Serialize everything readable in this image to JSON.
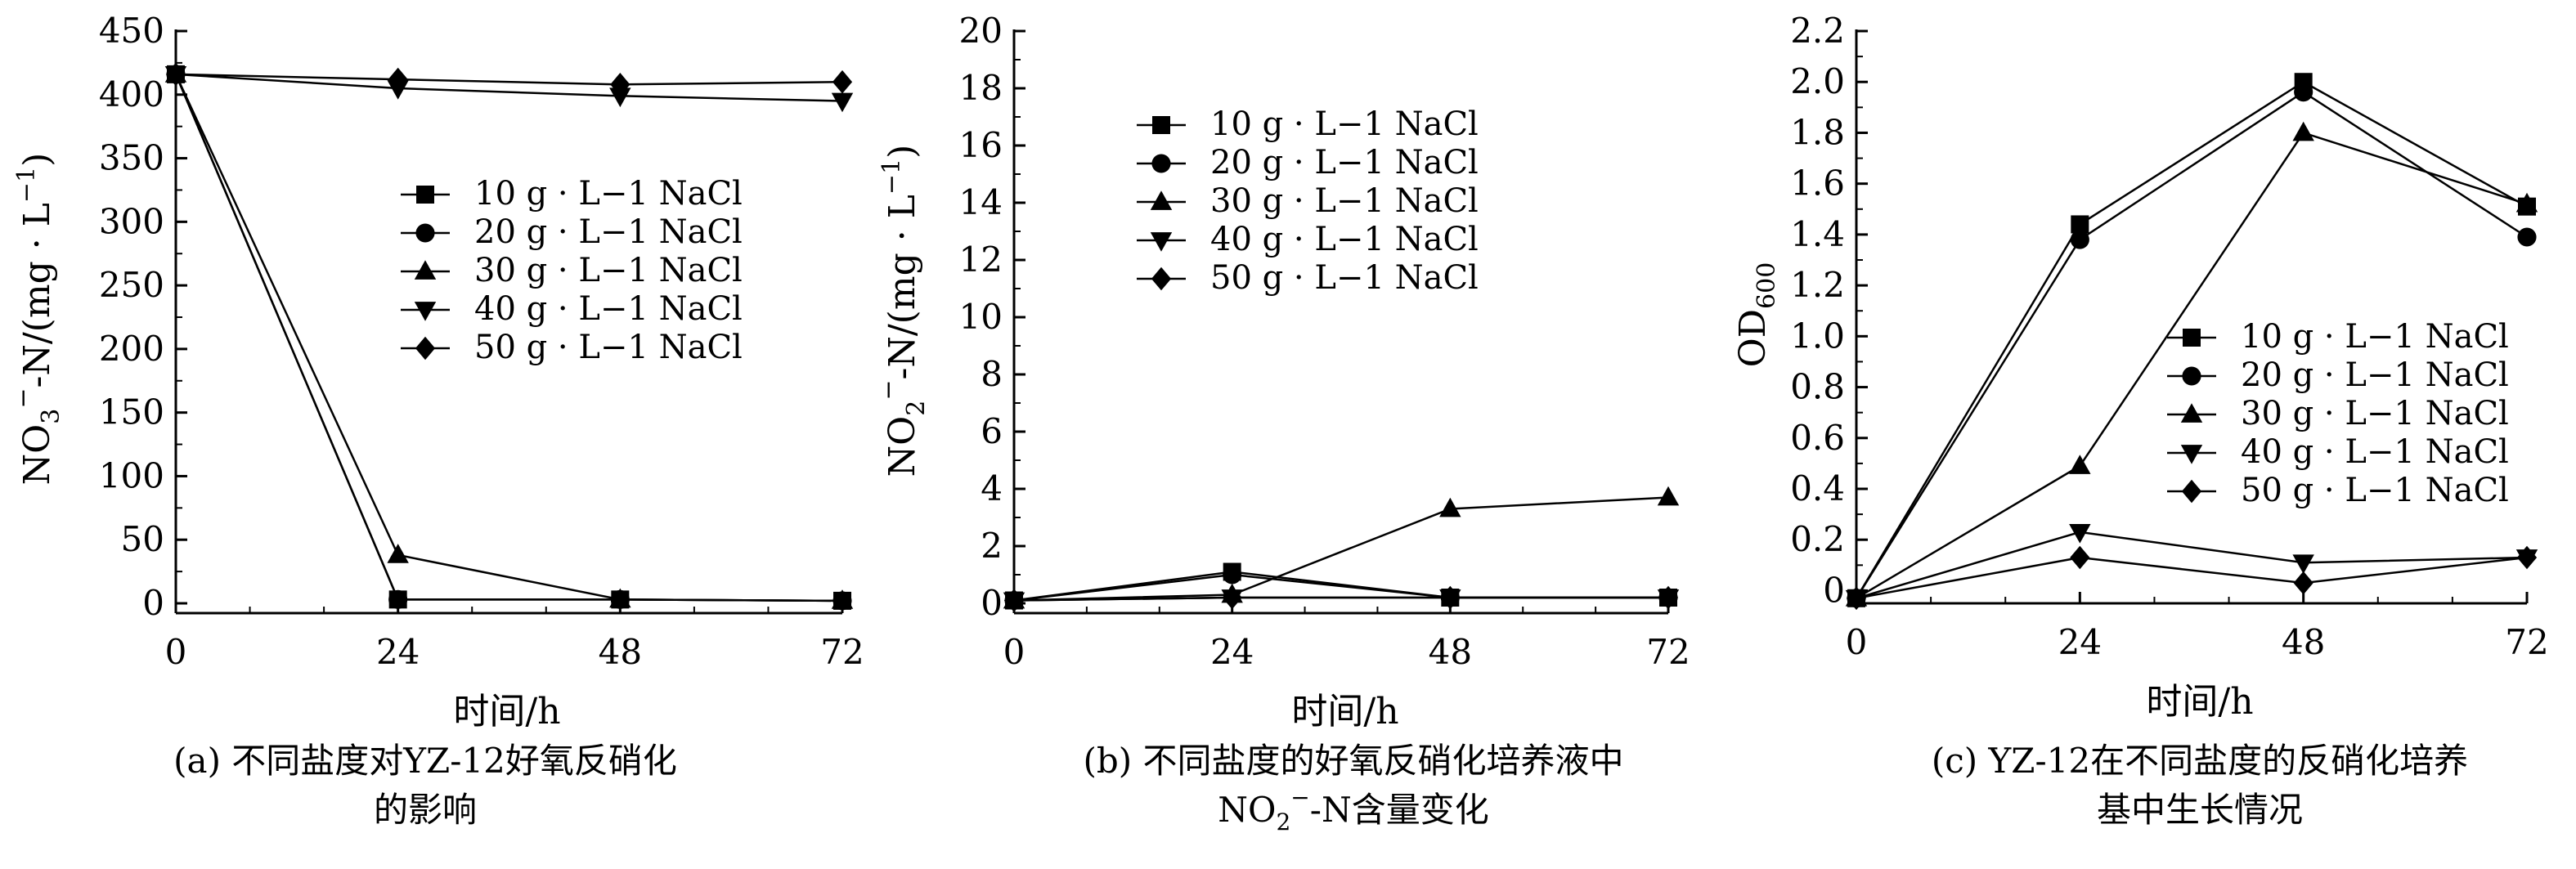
{
  "chart_data": [
    {
      "type": "line",
      "panel": "a",
      "ylabel": "NO3−-N/(mg · L−1)",
      "ylabel_parts": {
        "a": "NO",
        "b": "3",
        "c": "−",
        "d": "-N/(mg · L",
        "e": "−1",
        "f": ")"
      },
      "xlabel": "时间/h",
      "caption_lines": [
        "(a) 不同盐度对YZ-12好氧反硝化",
        "的影响"
      ],
      "x": [
        0,
        24,
        48,
        72
      ],
      "x_ticks": [
        "0",
        "24",
        "48",
        "72"
      ],
      "ylim": [
        0,
        450
      ],
      "y_ticks": [
        "0",
        "50",
        "100",
        "150",
        "200",
        "250",
        "300",
        "350",
        "400",
        "450"
      ],
      "legend_position": "center",
      "series": [
        {
          "name": "10 g · L−1 NaCl",
          "marker": "square",
          "values": [
            416,
            3,
            3,
            2
          ]
        },
        {
          "name": "20 g · L−1 NaCl",
          "marker": "circle",
          "values": [
            416,
            3,
            3,
            2
          ]
        },
        {
          "name": "30 g · L−1 NaCl",
          "marker": "triangle",
          "values": [
            416,
            38,
            3,
            2
          ]
        },
        {
          "name": "40 g · L−1 NaCl",
          "marker": "triangle-down",
          "values": [
            416,
            405,
            399,
            395
          ]
        },
        {
          "name": "50 g · L−1 NaCl",
          "marker": "diamond",
          "values": [
            416,
            412,
            408,
            410
          ]
        }
      ]
    },
    {
      "type": "line",
      "panel": "b",
      "ylabel": "NO2−-N/(mg · L−1)",
      "ylabel_parts": {
        "a": "NO",
        "b": "2",
        "c": "−",
        "d": "-N/(mg · L",
        "e": "−1",
        "f": ")"
      },
      "xlabel": "时间/h",
      "caption_lines": [
        "(b) 不同盐度的好氧反硝化培养液中",
        "NO2−-N含量变化"
      ],
      "caption_line2_parts": {
        "a": "NO",
        "b": "2",
        "c": "−",
        "d": "-N含量变化"
      },
      "x": [
        0,
        24,
        48,
        72
      ],
      "x_ticks": [
        "0",
        "24",
        "48",
        "72"
      ],
      "ylim": [
        0,
        20
      ],
      "y_ticks": [
        "0",
        "2",
        "4",
        "6",
        "8",
        "10",
        "12",
        "14",
        "16",
        "18",
        "20"
      ],
      "legend_position": "top-center",
      "series": [
        {
          "name": "10 g · L−1 NaCl",
          "marker": "square",
          "values": [
            0.1,
            1.1,
            0.2,
            0.2
          ]
        },
        {
          "name": "20 g · L−1 NaCl",
          "marker": "circle",
          "values": [
            0.1,
            1.0,
            0.2,
            0.2
          ]
        },
        {
          "name": "30 g · L−1 NaCl",
          "marker": "triangle",
          "values": [
            0.1,
            0.3,
            3.3,
            3.7
          ]
        },
        {
          "name": "40 g · L−1 NaCl",
          "marker": "triangle-down",
          "values": [
            0.1,
            0.2,
            0.2,
            0.2
          ]
        },
        {
          "name": "50 g · L−1 NaCl",
          "marker": "diamond",
          "values": [
            0.1,
            0.2,
            0.2,
            0.2
          ]
        }
      ]
    },
    {
      "type": "line",
      "panel": "c",
      "ylabel": "OD600",
      "ylabel_parts": {
        "a": "OD",
        "b": "600"
      },
      "xlabel": "时间/h",
      "caption_lines": [
        "(c) YZ-12在不同盐度的反硝化培养",
        "基中生长情况"
      ],
      "x": [
        0,
        24,
        48,
        72
      ],
      "x_ticks": [
        "0",
        "24",
        "48",
        "72"
      ],
      "ylim": [
        -0.05,
        2.2
      ],
      "y_ticks": [
        "0",
        "0.2",
        "0.4",
        "0.6",
        "0.8",
        "1.0",
        "1.2",
        "1.4",
        "1.6",
        "1.8",
        "2.0",
        "2.2"
      ],
      "legend_position": "center-right",
      "series": [
        {
          "name": "10 g · L−1 NaCl",
          "marker": "square",
          "values": [
            -0.03,
            1.44,
            2.0,
            1.51
          ]
        },
        {
          "name": "20 g · L−1 NaCl",
          "marker": "circle",
          "values": [
            -0.03,
            1.38,
            1.96,
            1.39
          ]
        },
        {
          "name": "30 g · L−1 NaCl",
          "marker": "triangle",
          "values": [
            -0.03,
            0.49,
            1.8,
            1.52
          ]
        },
        {
          "name": "40 g · L−1 NaCl",
          "marker": "triangle-down",
          "values": [
            -0.03,
            0.23,
            0.11,
            0.13
          ]
        },
        {
          "name": "50 g · L−1 NaCl",
          "marker": "diamond",
          "values": [
            -0.03,
            0.13,
            0.03,
            0.13
          ]
        }
      ]
    }
  ]
}
